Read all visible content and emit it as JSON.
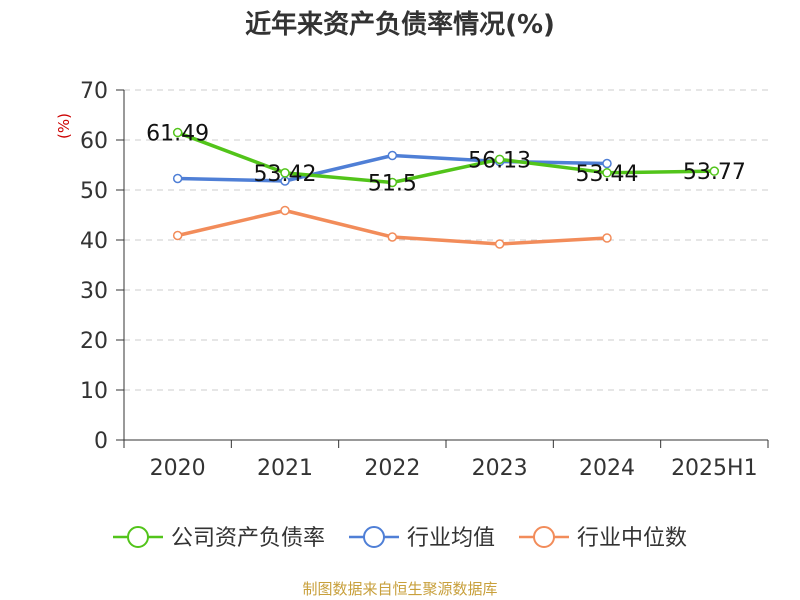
{
  "chart_data": {
    "type": "line",
    "title": "近年来资产负债率情况(%)",
    "unit_label": "(%)",
    "categories": [
      "2020",
      "2021",
      "2022",
      "2023",
      "2024",
      "2025H1"
    ],
    "ylim": [
      0,
      70
    ],
    "yticks": [
      0,
      10,
      20,
      30,
      40,
      50,
      60,
      70
    ],
    "grid": true,
    "legend_position": "bottom",
    "series": [
      {
        "name": "公司资产负债率",
        "color": "#52c41a",
        "values": [
          61.49,
          53.42,
          51.5,
          56.13,
          53.44,
          53.77
        ],
        "labels": [
          "61.49",
          "53.42",
          "51.5",
          "56.13",
          "53.44",
          "53.77"
        ]
      },
      {
        "name": "行业均值",
        "color": "#4f7fd6",
        "values": [
          52.3,
          51.8,
          56.9,
          55.7,
          55.3,
          null
        ]
      },
      {
        "name": "行业中位数",
        "color": "#f28c5a",
        "values": [
          40.9,
          45.9,
          40.6,
          39.2,
          40.4,
          null
        ]
      }
    ]
  },
  "source_text": "制图数据来自恒生聚源数据库"
}
